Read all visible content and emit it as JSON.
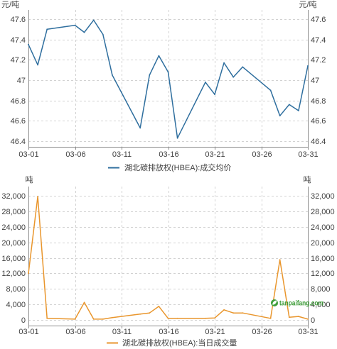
{
  "chart_data": [
    {
      "type": "line",
      "y_unit": "元/吨",
      "ylim": [
        46.4,
        47.6
      ],
      "y_tick_labels": [
        "47.6",
        "47.4",
        "47.2",
        "47",
        "46.8",
        "46.6",
        "46.4"
      ],
      "x_tick_labels": [
        "03-01",
        "03-06",
        "03-11",
        "03-16",
        "03-21",
        "03-26",
        "03-31"
      ],
      "grid": true,
      "legend_placement": "bottom",
      "series": [
        {
          "name": "湖北碳排放权(HBEA):成交均价",
          "color": "#2e6e9e",
          "x": [
            "03-01",
            "03-02",
            "03-03",
            "03-06",
            "03-07",
            "03-08",
            "03-09",
            "03-10",
            "03-13",
            "03-14",
            "03-15",
            "03-16",
            "03-17",
            "03-20",
            "03-21",
            "03-22",
            "03-23",
            "03-24",
            "03-27",
            "03-28",
            "03-29",
            "03-30",
            "03-31"
          ],
          "y": [
            47.35,
            47.15,
            47.5,
            47.54,
            47.47,
            47.59,
            47.45,
            47.05,
            46.53,
            47.05,
            47.24,
            47.08,
            46.43,
            46.98,
            46.86,
            47.17,
            47.03,
            47.13,
            46.9,
            46.65,
            46.76,
            46.7,
            47.14
          ]
        }
      ]
    },
    {
      "type": "line",
      "y_unit": "吨",
      "ylim": [
        0,
        32000
      ],
      "y_tick_labels": [
        "32,000",
        "28,000",
        "24,000",
        "20,000",
        "16,000",
        "12,000",
        "8,000",
        "4,000",
        "0"
      ],
      "x_tick_labels": [
        "03-01",
        "03-06",
        "03-11",
        "03-16",
        "03-21",
        "03-26",
        "03-31"
      ],
      "grid": true,
      "legend_placement": "bottom",
      "series": [
        {
          "name": "湖北碳排放权(HBEA):当日成交量",
          "color": "#e9962d",
          "x": [
            "03-01",
            "03-02",
            "03-03",
            "03-06",
            "03-07",
            "03-08",
            "03-09",
            "03-10",
            "03-13",
            "03-14",
            "03-15",
            "03-16",
            "03-17",
            "03-20",
            "03-21",
            "03-22",
            "03-23",
            "03-24",
            "03-27",
            "03-28",
            "03-29",
            "03-30",
            "03-31"
          ],
          "y": [
            12000,
            31800,
            400,
            200,
            4500,
            200,
            200,
            600,
            1500,
            1800,
            3500,
            400,
            400,
            400,
            500,
            2600,
            1800,
            1800,
            400,
            15500,
            700,
            900,
            200
          ]
        }
      ]
    }
  ],
  "watermark": {
    "text": "tanpaifang.com",
    "icon": "leaf-icon",
    "color": "#3f9e3a"
  }
}
